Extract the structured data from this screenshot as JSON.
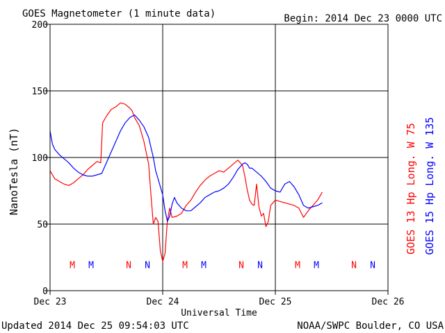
{
  "header": {
    "title": "GOES Magnetometer (1 minute data)",
    "begin": "Begin:  2014 Dec 23 0000 UTC"
  },
  "footer": {
    "updated": "Updated 2014 Dec 25 09:54:03 UTC",
    "credit": "NOAA/SWPC Boulder, CO USA"
  },
  "colors": {
    "goes13": "#ff0000",
    "goes15": "#0000ff",
    "grid": "#000000"
  },
  "chart_data": {
    "type": "line",
    "title": "GOES Magnetometer (1 minute data)",
    "xlabel": "Universal Time",
    "ylabel": "NanoTesla (nT)",
    "xlim": [
      0,
      72
    ],
    "ylim": [
      0,
      200
    ],
    "y_ticks": [
      0,
      50,
      100,
      150,
      200
    ],
    "x_ticks": [
      {
        "value": 0,
        "label": "Dec 23"
      },
      {
        "value": 24,
        "label": "Dec 24"
      },
      {
        "value": 48,
        "label": "Dec 25"
      },
      {
        "value": 72,
        "label": "Dec 26"
      }
    ],
    "grid": true,
    "x_units": "hours since 2014 Dec 23 0000 UTC",
    "series": [
      {
        "name": "GOES 13 Hp  Long. W 75",
        "color": "#ff0000",
        "x": [
          0,
          1,
          2,
          3,
          4,
          5,
          6,
          7,
          8,
          9,
          10,
          10.8,
          11.2,
          12,
          13,
          14,
          15,
          16,
          17,
          17.5,
          18,
          19,
          20,
          21,
          21.5,
          22,
          22.5,
          23,
          23.5,
          24,
          24.5,
          25,
          25.5,
          26,
          27,
          28,
          29,
          30,
          31,
          32,
          33,
          34,
          35,
          36,
          37,
          38,
          39,
          40,
          41,
          41.5,
          42,
          42.5,
          43,
          43.5,
          44,
          44.5,
          45,
          45.5,
          46,
          46.5,
          47,
          47.5,
          48,
          49,
          50,
          51,
          52,
          53,
          54,
          55,
          56,
          57,
          58
        ],
        "y": [
          90,
          84,
          82,
          80,
          79,
          81,
          84,
          87,
          91,
          94,
          97,
          96,
          126,
          131,
          136,
          138,
          141,
          140,
          137,
          135,
          130,
          124,
          112,
          95,
          72,
          50,
          55,
          52,
          30,
          22,
          28,
          53,
          62,
          55,
          56,
          58,
          64,
          68,
          74,
          79,
          83,
          86,
          88,
          90,
          89,
          92,
          95,
          98,
          94,
          86,
          76,
          68,
          65,
          64,
          80,
          63,
          56,
          58,
          48,
          52,
          64,
          66,
          68,
          67,
          66,
          65,
          64,
          62,
          55,
          60,
          64,
          68,
          74
        ]
      },
      {
        "name": "GOES 15 Hp  Long. W 135",
        "color": "#0000ff",
        "x": [
          0,
          0.5,
          1,
          2,
          3,
          4,
          5,
          6,
          7,
          8,
          9,
          10,
          11,
          12,
          13,
          14,
          15,
          16,
          17,
          18,
          19,
          20,
          21,
          22,
          22.5,
          23,
          23.5,
          24,
          24.5,
          25,
          25.5,
          26,
          26.5,
          27,
          28,
          29,
          30,
          31,
          32,
          33,
          34,
          35,
          36,
          37,
          38,
          39,
          40,
          41,
          41.5,
          42,
          42.5,
          43,
          44,
          45,
          46,
          47,
          48,
          49,
          50,
          51,
          51.5,
          52,
          53,
          54,
          55,
          56,
          57,
          58
        ],
        "y": [
          120,
          110,
          106,
          102,
          99,
          96,
          92,
          89,
          87,
          86,
          86,
          87,
          88,
          96,
          104,
          112,
          120,
          126,
          130,
          132,
          128,
          123,
          115,
          100,
          90,
          84,
          78,
          72,
          60,
          52,
          56,
          65,
          70,
          66,
          62,
          60,
          60,
          63,
          66,
          70,
          72,
          74,
          75,
          77,
          80,
          85,
          91,
          95,
          96,
          95,
          92,
          92,
          89,
          86,
          82,
          77,
          75,
          74,
          80,
          82,
          80,
          78,
          72,
          64,
          62,
          63,
          64,
          66
        ]
      }
    ],
    "annotations": [
      {
        "label": "M",
        "x": 4.75,
        "color": "#ff0000"
      },
      {
        "label": "M",
        "x": 8.75,
        "color": "#0000ff"
      },
      {
        "label": "N",
        "x": 16.75,
        "color": "#ff0000"
      },
      {
        "label": "N",
        "x": 20.75,
        "color": "#0000ff"
      },
      {
        "label": "M",
        "x": 28.75,
        "color": "#ff0000"
      },
      {
        "label": "M",
        "x": 32.75,
        "color": "#0000ff"
      },
      {
        "label": "N",
        "x": 40.75,
        "color": "#ff0000"
      },
      {
        "label": "N",
        "x": 44.75,
        "color": "#0000ff"
      },
      {
        "label": "M",
        "x": 52.75,
        "color": "#ff0000"
      },
      {
        "label": "M",
        "x": 56.75,
        "color": "#0000ff"
      },
      {
        "label": "N",
        "x": 64.75,
        "color": "#ff0000"
      },
      {
        "label": "N",
        "x": 68.75,
        "color": "#0000ff"
      }
    ],
    "annotation_y": 17
  }
}
